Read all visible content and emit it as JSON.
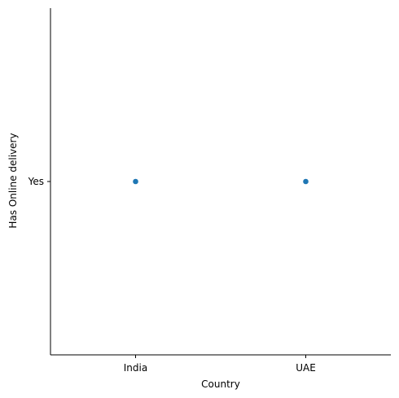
{
  "chart_data": {
    "type": "scatter",
    "title": "",
    "xlabel": "Country",
    "ylabel": "Has Online delivery",
    "categories": [
      "India",
      "UAE"
    ],
    "y_categories": [
      "Yes"
    ],
    "points": [
      {
        "x": "India",
        "y": "Yes"
      },
      {
        "x": "UAE",
        "y": "Yes"
      }
    ],
    "grid": false,
    "legend": "none",
    "marker_color": "#1f77b4"
  }
}
